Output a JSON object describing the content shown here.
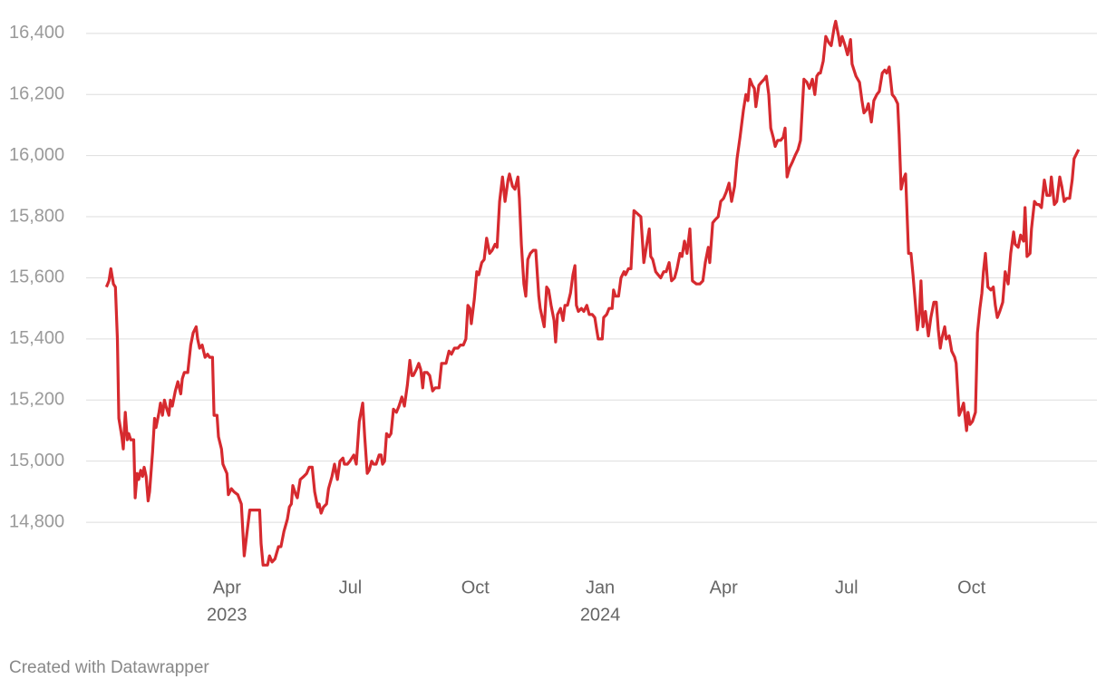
{
  "chart_data": {
    "type": "line",
    "x": [
      2023.004,
      2023.009,
      2023.013,
      2023.018,
      2023.022,
      2023.026,
      2023.029,
      2023.035,
      2023.038,
      2023.042,
      2023.046,
      2023.049,
      2023.053,
      2023.059,
      2023.062,
      2023.066,
      2023.069,
      2023.073,
      2023.077,
      2023.08,
      2023.084,
      2023.088,
      2023.091,
      2023.097,
      2023.101,
      2023.104,
      2023.11,
      2023.113,
      2023.117,
      2023.121,
      2023.124,
      2023.13,
      2023.133,
      2023.137,
      2023.143,
      2023.148,
      2023.154,
      2023.157,
      2023.161,
      2023.168,
      2023.174,
      2023.179,
      2023.185,
      2023.188,
      2023.192,
      2023.197,
      2023.203,
      2023.208,
      2023.212,
      2023.218,
      2023.221,
      2023.227,
      2023.23,
      2023.236,
      2023.239,
      2023.247,
      2023.25,
      2023.256,
      2023.261,
      2023.269,
      2023.276,
      2023.282,
      2023.287,
      2023.293,
      2023.302,
      2023.313,
      2023.316,
      2023.32,
      2023.329,
      2023.333,
      2023.338,
      2023.344,
      2023.351,
      2023.356,
      2023.362,
      2023.369,
      2023.373,
      2023.377,
      2023.38,
      2023.386,
      2023.389,
      2023.395,
      2023.402,
      2023.408,
      2023.413,
      2023.419,
      2023.424,
      2023.43,
      2023.433,
      2023.437,
      2023.442,
      2023.448,
      2023.452,
      2023.459,
      2023.464,
      2023.47,
      2023.475,
      2023.481,
      2023.484,
      2023.49,
      2023.495,
      2023.503,
      2023.508,
      2023.514,
      2023.521,
      2023.525,
      2023.53,
      2023.534,
      2023.539,
      2023.543,
      2023.548,
      2023.554,
      2023.558,
      2023.561,
      2023.565,
      2023.569,
      2023.574,
      2023.578,
      2023.583,
      2023.589,
      2023.594,
      2023.6,
      2023.605,
      2023.611,
      2023.616,
      2023.62,
      2023.623,
      2023.629,
      2023.634,
      2023.638,
      2023.642,
      2023.645,
      2023.651,
      2023.656,
      2023.662,
      2023.667,
      2023.675,
      2023.68,
      2023.689,
      2023.695,
      2023.7,
      2023.706,
      2023.713,
      2023.718,
      2023.724,
      2023.729,
      2023.733,
      2023.737,
      2023.74,
      2023.746,
      2023.751,
      2023.755,
      2023.761,
      2023.766,
      2023.771,
      2023.777,
      2023.782,
      2023.788,
      2023.792,
      2023.797,
      2023.803,
      2023.808,
      2023.814,
      2023.817,
      2023.823,
      2023.828,
      2023.834,
      2023.837,
      2023.841,
      2023.846,
      2023.85,
      2023.854,
      2023.859,
      2023.865,
      2023.87,
      2023.876,
      2023.879,
      2023.883,
      2023.887,
      2023.892,
      2023.896,
      2023.901,
      2023.907,
      2023.91,
      2023.914,
      2023.92,
      2023.925,
      2023.929,
      2023.934,
      2023.94,
      2023.945,
      2023.949,
      2023.952,
      2023.956,
      2023.962,
      2023.967,
      2023.973,
      2023.978,
      2023.984,
      2023.989,
      2023.993,
      2023.996,
      2024.004,
      2024.007,
      2024.013,
      2024.018,
      2024.024,
      2024.027,
      2024.031,
      2024.037,
      2024.042,
      2024.048,
      2024.051,
      2024.057,
      2024.062,
      2024.068,
      2024.075,
      2024.082,
      2024.088,
      2024.093,
      2024.099,
      2024.102,
      2024.106,
      2024.112,
      2024.117,
      2024.122,
      2024.128,
      2024.133,
      2024.139,
      2024.144,
      2024.15,
      2024.155,
      2024.161,
      2024.165,
      2024.17,
      2024.175,
      2024.181,
      2024.186,
      2024.194,
      2024.201,
      2024.207,
      2024.212,
      2024.218,
      2024.221,
      2024.227,
      2024.232,
      2024.238,
      2024.243,
      2024.249,
      2024.254,
      2024.26,
      2024.265,
      2024.271,
      2024.276,
      2024.282,
      2024.289,
      2024.294,
      2024.298,
      2024.302,
      2024.307,
      2024.311,
      2024.314,
      2024.32,
      2024.325,
      2024.331,
      2024.335,
      2024.34,
      2024.344,
      2024.349,
      2024.353,
      2024.358,
      2024.364,
      2024.369,
      2024.373,
      2024.377,
      2024.382,
      2024.388,
      2024.393,
      2024.399,
      2024.404,
      2024.411,
      2024.417,
      2024.422,
      2024.428,
      2024.433,
      2024.437,
      2024.441,
      2024.444,
      2024.45,
      2024.455,
      2024.461,
      2024.466,
      2024.472,
      2024.475,
      2024.481,
      2024.484,
      2024.488,
      2024.494,
      2024.499,
      2024.505,
      2024.508,
      2024.516,
      2024.523,
      2024.528,
      2024.532,
      2024.537,
      2024.541,
      2024.547,
      2024.552,
      2024.558,
      2024.563,
      2024.569,
      2024.574,
      2024.578,
      2024.583,
      2024.589,
      2024.594,
      2024.6,
      2024.603,
      2024.607,
      2024.611,
      2024.616,
      2024.622,
      2024.627,
      2024.631,
      2024.636,
      2024.64,
      2024.644,
      2024.647,
      2024.651,
      2024.656,
      2024.662,
      2024.667,
      2024.673,
      2024.678,
      2024.682,
      2024.686,
      2024.689,
      2024.695,
      2024.698,
      2024.704,
      2024.709,
      2024.715,
      2024.718,
      2024.724,
      2024.729,
      2024.733,
      2024.739,
      2024.742,
      2024.746,
      2024.751,
      2024.757,
      2024.761,
      2024.766,
      2024.77,
      2024.773,
      2024.777,
      2024.782,
      2024.788,
      2024.793,
      2024.797,
      2024.801,
      2024.806,
      2024.812,
      2024.817,
      2024.823,
      2024.828,
      2024.834,
      2024.837,
      2024.843,
      2024.848,
      2024.854,
      2024.857,
      2024.861,
      2024.867,
      2024.87,
      2024.876,
      2024.881,
      2024.885,
      2024.89,
      2024.896,
      2024.901,
      2024.907,
      2024.91,
      2024.916,
      2024.921,
      2024.927,
      2024.931,
      2024.936,
      2024.941,
      2024.947,
      2024.952,
      2024.956,
      2024.965
    ],
    "series": [
      {
        "color": "#d62a2f",
        "values": [
          15570,
          15590,
          15630,
          15580,
          15570,
          15400,
          15140,
          15080,
          15040,
          15160,
          15070,
          15090,
          15070,
          15070,
          14880,
          14960,
          14940,
          14970,
          14950,
          14980,
          14950,
          14870,
          14900,
          15030,
          15140,
          15110,
          15160,
          15190,
          15150,
          15200,
          15180,
          15150,
          15200,
          15180,
          15230,
          15260,
          15220,
          15270,
          15290,
          15290,
          15380,
          15420,
          15440,
          15400,
          15370,
          15380,
          15340,
          15350,
          15340,
          15340,
          15150,
          15150,
          15080,
          15040,
          14990,
          14960,
          14890,
          14910,
          14900,
          14890,
          14860,
          14690,
          14760,
          14840,
          14840,
          14840,
          14730,
          14660,
          14660,
          14690,
          14670,
          14680,
          14720,
          14720,
          14770,
          14810,
          14850,
          14860,
          14920,
          14890,
          14880,
          14940,
          14950,
          14960,
          14980,
          14980,
          14900,
          14850,
          14860,
          14830,
          14850,
          14860,
          14910,
          14950,
          14990,
          14940,
          15000,
          15010,
          14990,
          14990,
          15000,
          15020,
          14990,
          15130,
          15190,
          15080,
          14960,
          14970,
          15000,
          14990,
          14990,
          15020,
          15020,
          14990,
          15000,
          15090,
          15080,
          15090,
          15170,
          15160,
          15180,
          15210,
          15180,
          15250,
          15330,
          15280,
          15280,
          15300,
          15320,
          15300,
          15240,
          15290,
          15290,
          15280,
          15230,
          15240,
          15240,
          15320,
          15320,
          15360,
          15350,
          15370,
          15370,
          15380,
          15380,
          15400,
          15510,
          15500,
          15450,
          15530,
          15620,
          15610,
          15650,
          15660,
          15730,
          15680,
          15690,
          15710,
          15700,
          15850,
          15930,
          15850,
          15920,
          15940,
          15900,
          15890,
          15930,
          15860,
          15710,
          15580,
          15540,
          15660,
          15680,
          15690,
          15690,
          15540,
          15500,
          15470,
          15440,
          15570,
          15560,
          15510,
          15460,
          15390,
          15480,
          15500,
          15460,
          15510,
          15510,
          15550,
          15610,
          15640,
          15510,
          15490,
          15500,
          15490,
          15510,
          15480,
          15480,
          15470,
          15430,
          15400,
          15400,
          15470,
          15480,
          15500,
          15500,
          15560,
          15540,
          15540,
          15600,
          15620,
          15610,
          15630,
          15630,
          15820,
          15810,
          15800,
          15650,
          15700,
          15760,
          15670,
          15660,
          15620,
          15610,
          15600,
          15620,
          15620,
          15650,
          15590,
          15600,
          15630,
          15680,
          15670,
          15720,
          15680,
          15760,
          15590,
          15580,
          15580,
          15590,
          15650,
          15700,
          15650,
          15780,
          15790,
          15800,
          15850,
          15860,
          15880,
          15910,
          15850,
          15900,
          15990,
          16060,
          16150,
          16200,
          16180,
          16250,
          16230,
          16220,
          16160,
          16230,
          16240,
          16250,
          16260,
          16200,
          16090,
          16060,
          16030,
          16050,
          16050,
          16060,
          16090,
          15930,
          15960,
          15980,
          16000,
          16020,
          16050,
          16250,
          16240,
          16220,
          16250,
          16200,
          16260,
          16270,
          16270,
          16310,
          16390,
          16370,
          16360,
          16420,
          16440,
          16390,
          16360,
          16390,
          16360,
          16330,
          16380,
          16300,
          16260,
          16240,
          16180,
          16140,
          16150,
          16170,
          16110,
          16180,
          16200,
          16210,
          16270,
          16280,
          16270,
          16290,
          16200,
          16190,
          16170,
          16070,
          15890,
          15920,
          15940,
          15680,
          15680,
          15610,
          15510,
          15430,
          15480,
          15590,
          15440,
          15490,
          15410,
          15470,
          15520,
          15520,
          15430,
          15370,
          15400,
          15440,
          15400,
          15410,
          15360,
          15340,
          15320,
          15150,
          15170,
          15190,
          15100,
          15160,
          15120,
          15130,
          15160,
          15420,
          15500,
          15550,
          15620,
          15680,
          15570,
          15560,
          15570,
          15510,
          15470,
          15490,
          15520,
          15620,
          15580,
          15680,
          15750,
          15710,
          15700,
          15740,
          15720,
          15830,
          15670,
          15680,
          15760,
          15850,
          15840,
          15840,
          15830,
          15920,
          15870,
          15870,
          15930,
          15840,
          15850,
          15930,
          15900,
          15850,
          15860,
          15860,
          15920,
          15990,
          16020
        ]
      }
    ],
    "xlim": [
      2022.963,
      2025.002
    ],
    "xticks": [
      {
        "value": 2023.247,
        "label": "Apr",
        "sublabel": "2023"
      },
      {
        "value": 2023.496,
        "label": "Jul"
      },
      {
        "value": 2023.748,
        "label": "Oct"
      },
      {
        "value": 2024.0,
        "label": "Jan",
        "sublabel": "2024"
      },
      {
        "value": 2024.249,
        "label": "Apr"
      },
      {
        "value": 2024.497,
        "label": "Jul"
      },
      {
        "value": 2024.749,
        "label": "Oct"
      }
    ],
    "ylim": [
      14640,
      16450
    ],
    "yticks": [
      {
        "value": 14800,
        "label": "14,800"
      },
      {
        "value": 15000,
        "label": "15,000"
      },
      {
        "value": 15200,
        "label": "15,200"
      },
      {
        "value": 15400,
        "label": "15,400"
      },
      {
        "value": 15600,
        "label": "15,600"
      },
      {
        "value": 15800,
        "label": "15,800"
      },
      {
        "value": 16000,
        "label": "16,000"
      },
      {
        "value": 16200,
        "label": "16,200"
      },
      {
        "value": 16400,
        "label": "16,400"
      }
    ],
    "grid": true,
    "credit": "Created with Datawrapper"
  }
}
